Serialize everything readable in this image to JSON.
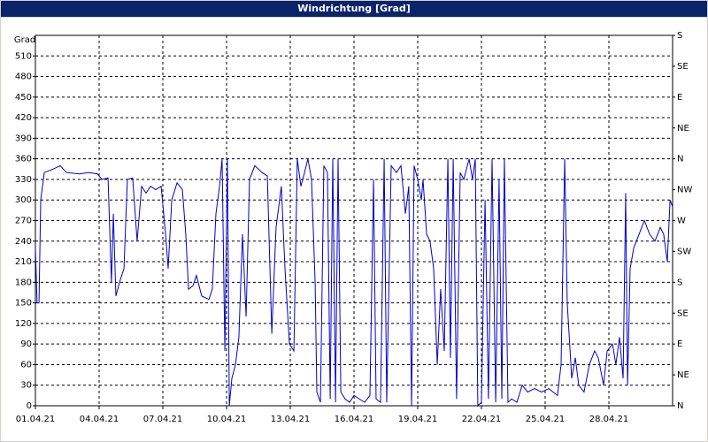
{
  "chart_data": {
    "type": "line",
    "title": "Windrichtung [Grad]",
    "y_label": "Grad",
    "xlim": [
      0,
      30
    ],
    "xticks": [
      {
        "value": 0,
        "label": "01.04.21"
      },
      {
        "value": 3,
        "label": "04.04.21"
      },
      {
        "value": 6,
        "label": "07.04.21"
      },
      {
        "value": 9,
        "label": "10.04.21"
      },
      {
        "value": 12,
        "label": "13.04.21"
      },
      {
        "value": 15,
        "label": "16.04.21"
      },
      {
        "value": 18,
        "label": "19.04.21"
      },
      {
        "value": 21,
        "label": "22.04.21"
      },
      {
        "value": 24,
        "label": "25.04.21"
      },
      {
        "value": 27,
        "label": "28.04.21"
      }
    ],
    "ylim": [
      0,
      540
    ],
    "yticks": [
      0,
      30,
      60,
      90,
      120,
      150,
      180,
      210,
      240,
      270,
      300,
      330,
      360,
      390,
      420,
      450,
      480,
      510
    ],
    "y2lim": [
      0,
      540
    ],
    "y2ticks": [
      {
        "value": 0,
        "label": "N"
      },
      {
        "value": 45,
        "label": "NE"
      },
      {
        "value": 90,
        "label": "E"
      },
      {
        "value": 135,
        "label": "SE"
      },
      {
        "value": 180,
        "label": "S"
      },
      {
        "value": 225,
        "label": "SW"
      },
      {
        "value": 270,
        "label": "W"
      },
      {
        "value": 315,
        "label": "NW"
      },
      {
        "value": 360,
        "label": "N"
      },
      {
        "value": 405,
        "label": "NE"
      },
      {
        "value": 450,
        "label": "E"
      },
      {
        "value": 495,
        "label": "SE"
      },
      {
        "value": 540,
        "label": "S"
      }
    ],
    "grid": true,
    "x": [
      0,
      0.08,
      0.17,
      0.25,
      0.42,
      0.83,
      1.17,
      1.46,
      2.08,
      2.5,
      2.92,
      3.13,
      3.42,
      3.58,
      3.67,
      3.79,
      3.96,
      4.17,
      4.33,
      4.58,
      4.79,
      5,
      5.21,
      5.42,
      5.67,
      5.92,
      6.13,
      6.25,
      6.42,
      6.67,
      6.92,
      7.08,
      7.21,
      7.42,
      7.58,
      7.83,
      8.17,
      8.33,
      8.5,
      8.67,
      8.79,
      8.92,
      9.04,
      9.13,
      9.25,
      9.42,
      9.58,
      9.75,
      9.92,
      10.08,
      10.33,
      10.67,
      10.92,
      11.13,
      11.33,
      11.58,
      11.75,
      11.96,
      12.17,
      12.33,
      12.5,
      12.67,
      12.83,
      13,
      13.17,
      13.25,
      13.42,
      13.58,
      13.75,
      13.88,
      14,
      14.13,
      14.25,
      14.38,
      14.58,
      14.79,
      15,
      15.25,
      15.5,
      15.75,
      15.92,
      16.04,
      16.25,
      16.42,
      16.54,
      16.75,
      17,
      17.21,
      17.42,
      17.58,
      17.71,
      17.83,
      18,
      18.17,
      18.25,
      18.42,
      18.58,
      18.75,
      18.92,
      19.08,
      19.25,
      19.42,
      19.54,
      19.67,
      19.83,
      20,
      20.17,
      20.42,
      20.58,
      20.71,
      20.83,
      21,
      21.17,
      21.33,
      21.5,
      21.67,
      21.83,
      21.96,
      22.08,
      22.25,
      22.42,
      22.67,
      22.92,
      23.17,
      23.5,
      23.83,
      24.17,
      24.58,
      24.75,
      24.92,
      25.04,
      25.25,
      25.42,
      25.58,
      25.83,
      26.08,
      26.33,
      26.5,
      26.75,
      26.92,
      27.17,
      27.33,
      27.5,
      27.67,
      27.79,
      27.88,
      28,
      28.17,
      28.42,
      28.67,
      28.92,
      29.17,
      29.42,
      29.58,
      29.75,
      29.88,
      30
    ],
    "series": [
      {
        "color": "#0000cc",
        "values": [
          230,
          150,
          150,
          300,
          340,
          345,
          350,
          340,
          338,
          340,
          338,
          330,
          332,
          180,
          280,
          160,
          180,
          200,
          330,
          332,
          240,
          320,
          310,
          320,
          315,
          320,
          250,
          200,
          300,
          325,
          315,
          250,
          170,
          175,
          190,
          160,
          155,
          170,
          280,
          320,
          360,
          80,
          360,
          0,
          40,
          60,
          100,
          250,
          130,
          330,
          350,
          340,
          335,
          105,
          260,
          320,
          200,
          90,
          80,
          360,
          320,
          340,
          360,
          330,
          180,
          20,
          5,
          350,
          340,
          10,
          360,
          5,
          360,
          20,
          10,
          5,
          15,
          10,
          5,
          15,
          330,
          10,
          5,
          360,
          5,
          350,
          340,
          350,
          280,
          320,
          0,
          350,
          330,
          300,
          330,
          250,
          240,
          200,
          60,
          170,
          80,
          360,
          70,
          360,
          10,
          340,
          330,
          360,
          330,
          360,
          0,
          5,
          300,
          10,
          360,
          5,
          330,
          10,
          360,
          5,
          10,
          5,
          30,
          20,
          25,
          20,
          25,
          15,
          60,
          360,
          150,
          40,
          70,
          30,
          20,
          60,
          80,
          70,
          30,
          80,
          90,
          60,
          100,
          40,
          310,
          30,
          200,
          230,
          250,
          270,
          250,
          240,
          260,
          250,
          210,
          300,
          290
        ]
      }
    ]
  }
}
